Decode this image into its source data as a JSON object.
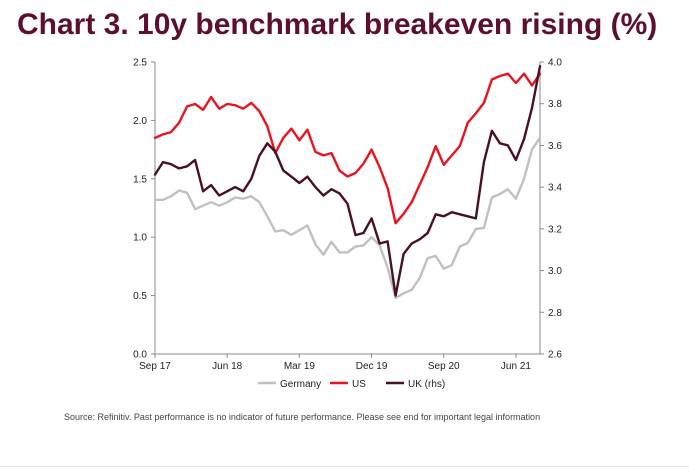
{
  "title": "Chart 3. 10y benchmark breakeven rising (%)",
  "source": "Source: Refinitiv. Past performance is no indicator of future performance. Please see end for important legal information",
  "chart_data": {
    "type": "line",
    "title": "Chart 3. 10y benchmark breakeven rising (%)",
    "x_tick_labels": [
      "Sep 17",
      "Jun 18",
      "Mar 19",
      "Dec 19",
      "Sep 20",
      "Jun 21"
    ],
    "x_tick_positions": [
      0,
      9,
      18,
      27,
      36,
      45
    ],
    "x_range": [
      0,
      48
    ],
    "y_left": {
      "ylim": [
        0.0,
        2.5
      ],
      "ticks": [
        "0.0",
        "0.5",
        "1.0",
        "1.5",
        "2.0",
        "2.5"
      ]
    },
    "y_right": {
      "ylim": [
        2.6,
        4.0
      ],
      "ticks": [
        "2.6",
        "2.8",
        "3.0",
        "3.2",
        "3.4",
        "3.6",
        "3.8",
        "4.0"
      ]
    },
    "grid": false,
    "legend_position": "bottom",
    "series": [
      {
        "name": "Germany",
        "axis": "left",
        "color": "#c0c0c0",
        "x": [
          0,
          1,
          2,
          3,
          4,
          5,
          6,
          7,
          8,
          9,
          10,
          11,
          12,
          13,
          14,
          15,
          16,
          17,
          18,
          19,
          20,
          21,
          22,
          23,
          24,
          25,
          26,
          27,
          28,
          29,
          30,
          31,
          32,
          33,
          34,
          35,
          36,
          37,
          38,
          39,
          40,
          41,
          42,
          43,
          44,
          45,
          46,
          47,
          48
        ],
        "values": [
          1.32,
          1.32,
          1.35,
          1.4,
          1.38,
          1.24,
          1.27,
          1.3,
          1.27,
          1.3,
          1.34,
          1.33,
          1.35,
          1.3,
          1.18,
          1.05,
          1.06,
          1.02,
          1.06,
          1.1,
          0.94,
          0.85,
          0.96,
          0.87,
          0.87,
          0.92,
          0.93,
          1.0,
          0.93,
          0.74,
          0.48,
          0.52,
          0.55,
          0.65,
          0.82,
          0.84,
          0.73,
          0.76,
          0.92,
          0.95,
          1.07,
          1.08,
          1.34,
          1.37,
          1.41,
          1.33,
          1.5,
          1.75,
          1.85
        ]
      },
      {
        "name": "US",
        "axis": "left",
        "color": "#e8141f",
        "x": [
          0,
          1,
          2,
          3,
          4,
          5,
          6,
          7,
          8,
          9,
          10,
          11,
          12,
          13,
          14,
          15,
          16,
          17,
          18,
          19,
          20,
          21,
          22,
          23,
          24,
          25,
          26,
          27,
          28,
          29,
          30,
          31,
          32,
          33,
          34,
          35,
          36,
          37,
          38,
          39,
          40,
          41,
          42,
          43,
          44,
          45,
          46,
          47,
          48
        ],
        "values": [
          1.85,
          1.88,
          1.9,
          1.98,
          2.12,
          2.14,
          2.09,
          2.2,
          2.1,
          2.14,
          2.13,
          2.1,
          2.15,
          2.08,
          1.95,
          1.72,
          1.85,
          1.93,
          1.83,
          1.92,
          1.73,
          1.7,
          1.72,
          1.57,
          1.52,
          1.55,
          1.63,
          1.75,
          1.6,
          1.42,
          1.12,
          1.2,
          1.3,
          1.45,
          1.6,
          1.78,
          1.62,
          1.7,
          1.78,
          1.98,
          2.06,
          2.15,
          2.35,
          2.38,
          2.4,
          2.32,
          2.4,
          2.3,
          2.4
        ]
      },
      {
        "name": "UK (rhs)",
        "axis": "right",
        "color": "#4a0e26",
        "x": [
          0,
          1,
          2,
          3,
          4,
          5,
          6,
          7,
          8,
          9,
          10,
          11,
          12,
          13,
          14,
          15,
          16,
          17,
          18,
          19,
          20,
          21,
          22,
          23,
          24,
          25,
          26,
          27,
          28,
          29,
          30,
          31,
          32,
          33,
          34,
          35,
          36,
          37,
          38,
          39,
          40,
          41,
          42,
          43,
          44,
          45,
          46,
          47,
          48
        ],
        "values": [
          3.46,
          3.52,
          3.51,
          3.49,
          3.5,
          3.53,
          3.38,
          3.41,
          3.36,
          3.38,
          3.4,
          3.38,
          3.44,
          3.55,
          3.61,
          3.57,
          3.48,
          3.45,
          3.42,
          3.45,
          3.4,
          3.36,
          3.39,
          3.37,
          3.32,
          3.17,
          3.18,
          3.25,
          3.13,
          3.14,
          2.88,
          3.08,
          3.13,
          3.15,
          3.18,
          3.27,
          3.26,
          3.28,
          3.27,
          3.26,
          3.25,
          3.52,
          3.67,
          3.61,
          3.6,
          3.53,
          3.63,
          3.78,
          3.98
        ]
      }
    ]
  }
}
